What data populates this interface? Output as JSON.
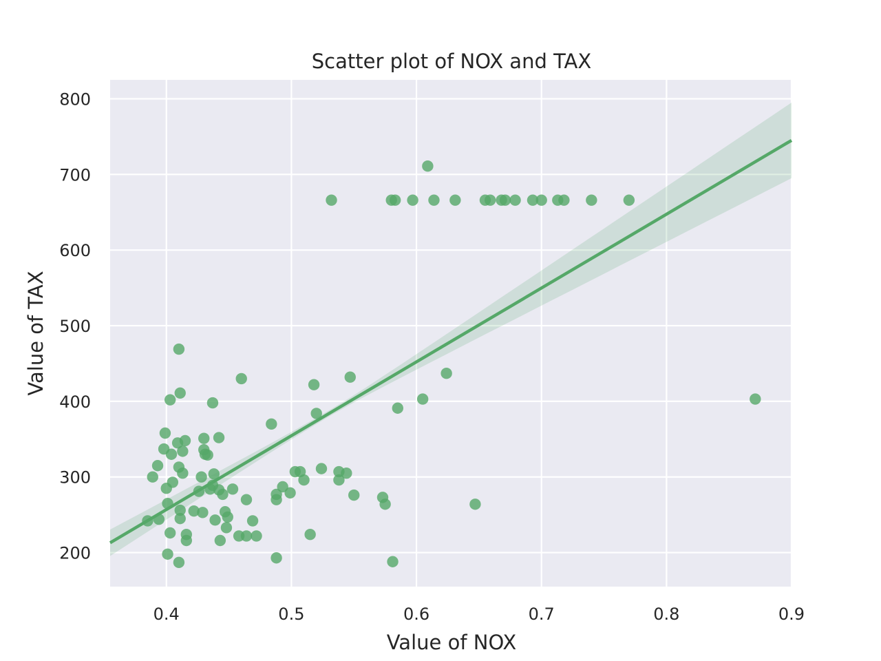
{
  "chart_data": {
    "type": "scatter",
    "title": "Scatter plot of NOX and TAX",
    "xlabel": "Value of NOX",
    "ylabel": "Value of TAX",
    "xlim": [
      0.355,
      0.9
    ],
    "ylim": [
      155,
      825
    ],
    "xticks": [
      0.4,
      0.5,
      0.6,
      0.7,
      0.8,
      0.9
    ],
    "xtick_labels": [
      "0.4",
      "0.5",
      "0.6",
      "0.7",
      "0.8",
      "0.9"
    ],
    "yticks": [
      200,
      300,
      400,
      500,
      600,
      700,
      800
    ],
    "ytick_labels": [
      "200",
      "300",
      "400",
      "500",
      "600",
      "700",
      "800"
    ],
    "grid": true,
    "colors": {
      "plot_background": "#eaeaf2",
      "grid": "#ffffff",
      "points": "#55a868",
      "regression_line": "#55a868",
      "confidence_band": "#55a868"
    },
    "regression": {
      "x": [
        0.355,
        0.9
      ],
      "y": [
        213,
        745
      ],
      "ci_upper": [
        230,
        797
      ],
      "ci_lower": [
        195,
        697
      ]
    },
    "points": [
      {
        "x": 0.385,
        "y": 242
      },
      {
        "x": 0.389,
        "y": 300
      },
      {
        "x": 0.393,
        "y": 315
      },
      {
        "x": 0.394,
        "y": 244
      },
      {
        "x": 0.398,
        "y": 337
      },
      {
        "x": 0.399,
        "y": 358
      },
      {
        "x": 0.4,
        "y": 285
      },
      {
        "x": 0.401,
        "y": 265
      },
      {
        "x": 0.401,
        "y": 198
      },
      {
        "x": 0.403,
        "y": 402
      },
      {
        "x": 0.403,
        "y": 226
      },
      {
        "x": 0.404,
        "y": 330
      },
      {
        "x": 0.405,
        "y": 293
      },
      {
        "x": 0.409,
        "y": 345
      },
      {
        "x": 0.41,
        "y": 469
      },
      {
        "x": 0.41,
        "y": 313
      },
      {
        "x": 0.41,
        "y": 187
      },
      {
        "x": 0.411,
        "y": 411
      },
      {
        "x": 0.411,
        "y": 256
      },
      {
        "x": 0.411,
        "y": 245
      },
      {
        "x": 0.413,
        "y": 334
      },
      {
        "x": 0.413,
        "y": 305
      },
      {
        "x": 0.415,
        "y": 348
      },
      {
        "x": 0.416,
        "y": 224
      },
      {
        "x": 0.416,
        "y": 216
      },
      {
        "x": 0.422,
        "y": 255
      },
      {
        "x": 0.426,
        "y": 281
      },
      {
        "x": 0.428,
        "y": 300
      },
      {
        "x": 0.429,
        "y": 253
      },
      {
        "x": 0.43,
        "y": 351
      },
      {
        "x": 0.43,
        "y": 336
      },
      {
        "x": 0.431,
        "y": 330
      },
      {
        "x": 0.433,
        "y": 329
      },
      {
        "x": 0.435,
        "y": 284
      },
      {
        "x": 0.437,
        "y": 398
      },
      {
        "x": 0.437,
        "y": 289
      },
      {
        "x": 0.438,
        "y": 304
      },
      {
        "x": 0.439,
        "y": 243
      },
      {
        "x": 0.442,
        "y": 352
      },
      {
        "x": 0.442,
        "y": 283
      },
      {
        "x": 0.443,
        "y": 216
      },
      {
        "x": 0.445,
        "y": 277
      },
      {
        "x": 0.447,
        "y": 254
      },
      {
        "x": 0.448,
        "y": 233
      },
      {
        "x": 0.449,
        "y": 247
      },
      {
        "x": 0.453,
        "y": 284
      },
      {
        "x": 0.458,
        "y": 222
      },
      {
        "x": 0.46,
        "y": 430
      },
      {
        "x": 0.464,
        "y": 270
      },
      {
        "x": 0.464,
        "y": 222
      },
      {
        "x": 0.469,
        "y": 242
      },
      {
        "x": 0.472,
        "y": 222
      },
      {
        "x": 0.484,
        "y": 370
      },
      {
        "x": 0.488,
        "y": 277
      },
      {
        "x": 0.488,
        "y": 270
      },
      {
        "x": 0.488,
        "y": 193
      },
      {
        "x": 0.493,
        "y": 287
      },
      {
        "x": 0.499,
        "y": 279
      },
      {
        "x": 0.503,
        "y": 307
      },
      {
        "x": 0.507,
        "y": 307
      },
      {
        "x": 0.51,
        "y": 296
      },
      {
        "x": 0.515,
        "y": 224
      },
      {
        "x": 0.518,
        "y": 422
      },
      {
        "x": 0.52,
        "y": 384
      },
      {
        "x": 0.524,
        "y": 311
      },
      {
        "x": 0.532,
        "y": 666
      },
      {
        "x": 0.538,
        "y": 296
      },
      {
        "x": 0.538,
        "y": 307
      },
      {
        "x": 0.544,
        "y": 305
      },
      {
        "x": 0.547,
        "y": 432
      },
      {
        "x": 0.55,
        "y": 276
      },
      {
        "x": 0.573,
        "y": 273
      },
      {
        "x": 0.575,
        "y": 264
      },
      {
        "x": 0.58,
        "y": 666
      },
      {
        "x": 0.581,
        "y": 188
      },
      {
        "x": 0.583,
        "y": 666
      },
      {
        "x": 0.585,
        "y": 391
      },
      {
        "x": 0.597,
        "y": 666
      },
      {
        "x": 0.605,
        "y": 403
      },
      {
        "x": 0.609,
        "y": 711
      },
      {
        "x": 0.614,
        "y": 666
      },
      {
        "x": 0.624,
        "y": 437
      },
      {
        "x": 0.631,
        "y": 666
      },
      {
        "x": 0.647,
        "y": 264
      },
      {
        "x": 0.655,
        "y": 666
      },
      {
        "x": 0.659,
        "y": 666
      },
      {
        "x": 0.668,
        "y": 666
      },
      {
        "x": 0.671,
        "y": 666
      },
      {
        "x": 0.679,
        "y": 666
      },
      {
        "x": 0.693,
        "y": 666
      },
      {
        "x": 0.7,
        "y": 666
      },
      {
        "x": 0.713,
        "y": 666
      },
      {
        "x": 0.718,
        "y": 666
      },
      {
        "x": 0.74,
        "y": 666
      },
      {
        "x": 0.77,
        "y": 666
      },
      {
        "x": 0.871,
        "y": 403
      }
    ]
  }
}
